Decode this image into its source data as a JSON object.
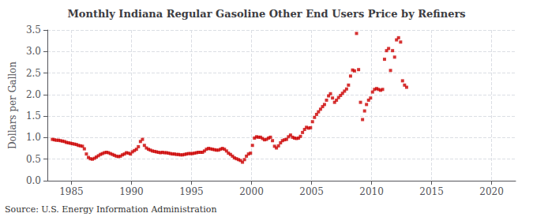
{
  "chart_data": {
    "type": "scatter",
    "title": "Monthly Indiana Regular Gasoline Other End Users Price by Refiners",
    "ylabel": "Dollars per Gallon",
    "annotation": "Source: U.S. Energy Information Administration",
    "color": "#CC0000",
    "marker": "square",
    "grid": true,
    "xlim": [
      1983.0,
      2022.0
    ],
    "ylim": [
      0.0,
      3.5
    ],
    "xticks": [
      1985,
      1990,
      1995,
      2000,
      2005,
      2010,
      2015,
      2020
    ],
    "yticks": [
      {
        "value": 0,
        "label": "0.0"
      },
      0.5,
      {
        "value": 1,
        "label": "1.0"
      },
      1.5,
      {
        "value": 2,
        "label": "2.0"
      },
      2.5,
      {
        "value": 3,
        "label": "3.0"
      },
      3.5
    ],
    "x": [
      1983.42,
      1983.58,
      1983.75,
      1983.92,
      1984.08,
      1984.25,
      1984.42,
      1984.58,
      1984.75,
      1984.92,
      1985.08,
      1985.25,
      1985.42,
      1985.58,
      1985.75,
      1985.92,
      1986.08,
      1986.25,
      1986.42,
      1986.58,
      1986.75,
      1986.92,
      1987.08,
      1987.25,
      1987.42,
      1987.58,
      1987.75,
      1987.92,
      1988.08,
      1988.25,
      1988.42,
      1988.58,
      1988.75,
      1988.92,
      1989.08,
      1989.25,
      1989.42,
      1989.58,
      1989.75,
      1989.92,
      1990.08,
      1990.25,
      1990.42,
      1990.58,
      1990.75,
      1990.92,
      1991.08,
      1991.25,
      1991.42,
      1991.58,
      1991.75,
      1991.92,
      1992.08,
      1992.25,
      1992.42,
      1992.58,
      1992.75,
      1992.92,
      1993.08,
      1993.25,
      1993.42,
      1993.58,
      1993.75,
      1993.92,
      1994.08,
      1994.25,
      1994.42,
      1994.58,
      1994.75,
      1994.92,
      1995.08,
      1995.25,
      1995.42,
      1995.58,
      1995.75,
      1995.92,
      1996.08,
      1996.25,
      1996.42,
      1996.58,
      1996.75,
      1996.92,
      1997.08,
      1997.25,
      1997.42,
      1997.58,
      1997.75,
      1997.92,
      1998.08,
      1998.25,
      1998.42,
      1998.58,
      1998.75,
      1998.92,
      1999.08,
      1999.25,
      1999.42,
      1999.58,
      1999.75,
      1999.92,
      2000.08,
      2000.25,
      2000.42,
      2000.58,
      2000.75,
      2000.92,
      2001.08,
      2001.25,
      2001.42,
      2001.58,
      2001.75,
      2001.92,
      2002.08,
      2002.25,
      2002.42,
      2002.58,
      2002.75,
      2002.92,
      2003.08,
      2003.25,
      2003.42,
      2003.58,
      2003.75,
      2003.92,
      2004.08,
      2004.25,
      2004.42,
      2004.58,
      2004.75,
      2004.92,
      2005.08,
      2005.25,
      2005.42,
      2005.58,
      2005.75,
      2005.92,
      2006.08,
      2006.25,
      2006.42,
      2006.58,
      2006.75,
      2006.92,
      2007.08,
      2007.25,
      2007.42,
      2007.58,
      2007.75,
      2007.92,
      2008.08,
      2008.25,
      2008.42,
      2008.58,
      2008.75,
      2008.92,
      2009.08,
      2009.25,
      2009.42,
      2009.58,
      2009.75,
      2009.92,
      2010.08,
      2010.25,
      2010.42,
      2010.58,
      2010.75,
      2010.92,
      2011.08,
      2011.25,
      2011.42,
      2011.58,
      2011.75,
      2011.92,
      2012.08,
      2012.25,
      2012.42,
      2012.58,
      2012.75,
      2012.92
    ],
    "values": [
      0.96,
      0.95,
      0.94,
      0.94,
      0.93,
      0.92,
      0.91,
      0.89,
      0.88,
      0.87,
      0.86,
      0.85,
      0.84,
      0.82,
      0.81,
      0.8,
      0.74,
      0.62,
      0.54,
      0.51,
      0.5,
      0.52,
      0.55,
      0.58,
      0.61,
      0.63,
      0.65,
      0.66,
      0.65,
      0.63,
      0.61,
      0.59,
      0.57,
      0.56,
      0.57,
      0.6,
      0.62,
      0.65,
      0.64,
      0.62,
      0.67,
      0.7,
      0.73,
      0.79,
      0.91,
      0.96,
      0.82,
      0.76,
      0.73,
      0.71,
      0.69,
      0.68,
      0.67,
      0.66,
      0.65,
      0.66,
      0.65,
      0.65,
      0.64,
      0.63,
      0.62,
      0.62,
      0.61,
      0.61,
      0.6,
      0.6,
      0.61,
      0.62,
      0.63,
      0.63,
      0.63,
      0.64,
      0.65,
      0.66,
      0.66,
      0.66,
      0.69,
      0.73,
      0.75,
      0.74,
      0.73,
      0.72,
      0.71,
      0.71,
      0.73,
      0.75,
      0.73,
      0.69,
      0.64,
      0.61,
      0.57,
      0.53,
      0.51,
      0.49,
      0.47,
      0.43,
      0.49,
      0.57,
      0.62,
      0.64,
      0.82,
      0.99,
      1.02,
      1.01,
      1.01,
      0.98,
      0.95,
      0.96,
      0.99,
      1.01,
      0.93,
      0.8,
      0.76,
      0.81,
      0.88,
      0.93,
      0.95,
      0.96,
      1.02,
      1.06,
      1.01,
      0.99,
      0.98,
      0.99,
      1.03,
      1.12,
      1.19,
      1.24,
      1.22,
      1.23,
      1.37,
      1.47,
      1.54,
      1.6,
      1.66,
      1.72,
      1.77,
      1.87,
      1.97,
      2.02,
      1.92,
      1.82,
      1.87,
      1.93,
      1.98,
      2.03,
      2.08,
      2.13,
      2.22,
      2.43,
      2.57,
      2.55,
      3.42,
      2.58,
      1.82,
      1.42,
      1.62,
      1.77,
      1.87,
      1.92,
      2.06,
      2.12,
      2.14,
      2.12,
      2.1,
      2.12,
      2.82,
      3.02,
      3.07,
      2.56,
      3.02,
      2.87,
      3.27,
      3.32,
      3.22,
      2.32,
      2.22,
      2.17
    ]
  }
}
